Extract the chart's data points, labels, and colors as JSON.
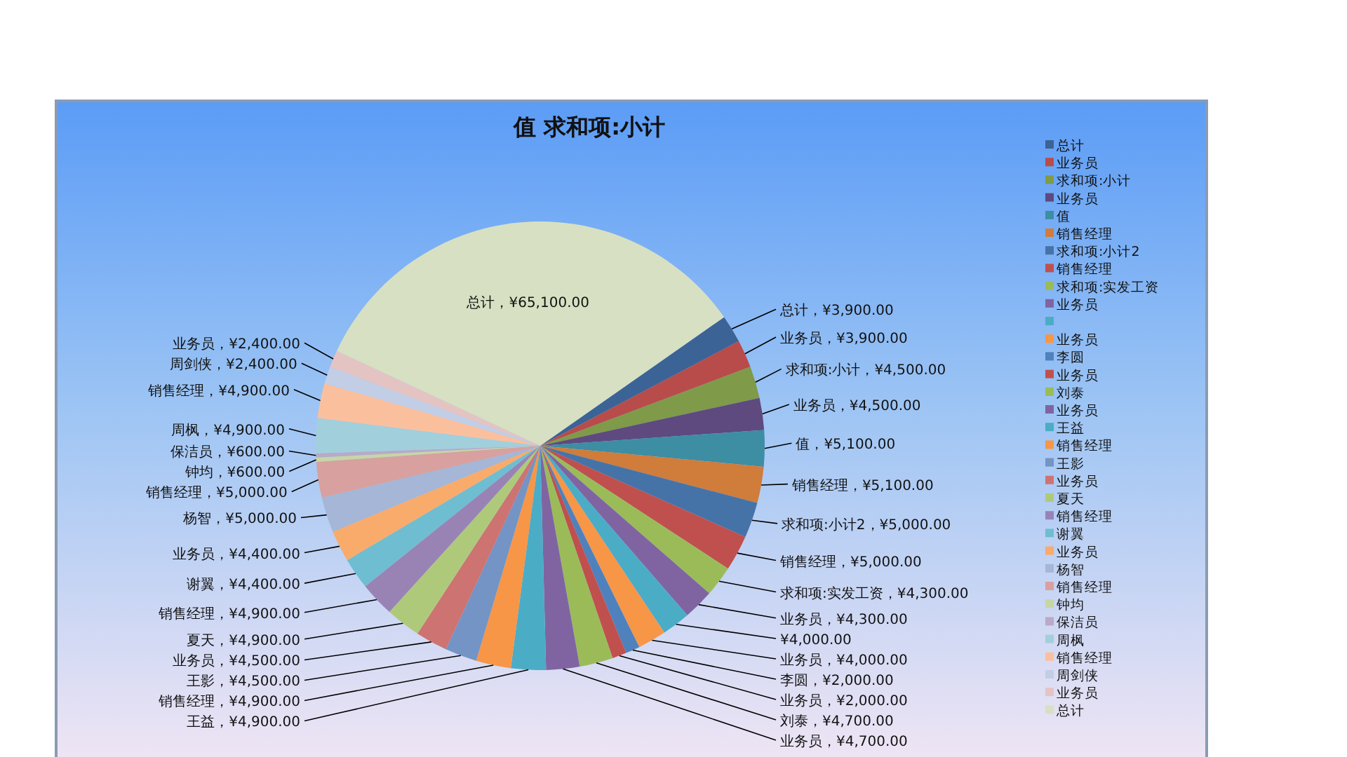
{
  "chart_data": {
    "type": "pie",
    "title": "值  求和项:小计",
    "categories": [
      "总计",
      "业务员",
      "求和项:小计",
      "业务员",
      "值",
      "销售经理",
      "求和项:小计2",
      "销售经理",
      "求和项:实发工资",
      "业务员",
      null,
      "业务员",
      "李圆",
      "业务员",
      "刘泰",
      "业务员",
      "王益",
      "销售经理",
      "王影",
      "业务员",
      "夏天",
      "销售经理",
      "谢翼",
      "业务员",
      "杨智",
      "销售经理",
      "钟均",
      "保洁员",
      "周枫",
      "销售经理",
      "周剑侠",
      "业务员",
      "总计"
    ],
    "values": [
      3900,
      3900,
      4500,
      4500,
      5100,
      5100,
      5000,
      5000,
      4300,
      4300,
      4000,
      4000,
      2000,
      2000,
      4700,
      4700,
      4900,
      4900,
      4500,
      4500,
      4900,
      4900,
      4400,
      4400,
      5000,
      5000,
      600,
      600,
      4900,
      4900,
      2400,
      2400,
      65100
    ],
    "value_labels": [
      "总计，¥3,900.00",
      "业务员，¥3,900.00",
      "求和项:小计，¥4,500.00",
      "业务员，¥4,500.00",
      "值，¥5,100.00",
      "销售经理，¥5,100.00",
      "求和项:小计2，¥5,000.00",
      "销售经理，¥5,000.00",
      "求和项:实发工资，¥4,300.00",
      "业务员，¥4,300.00",
      "¥4,000.00",
      "业务员，¥4,000.00",
      "李圆，¥2,000.00",
      "业务员，¥2,000.00",
      "刘泰，¥4,700.00",
      "业务员，¥4,700.00",
      "王益，¥4,900.00",
      "销售经理，¥4,900.00",
      "王影，¥4,500.00",
      "业务员，¥4,500.00",
      "夏天，¥4,900.00",
      "销售经理，¥4,900.00",
      "谢翼，¥4,400.00",
      "业务员，¥4,400.00",
      "杨智，¥5,000.00",
      "销售经理，¥5,000.00",
      "钟均，¥600.00",
      "保洁员，¥600.00",
      "周枫，¥4,900.00",
      "销售经理，¥4,900.00",
      "周剑侠，¥2,400.00",
      "业务员，¥2,400.00",
      "总计，¥65,100.00"
    ],
    "colors": [
      "#3c6396",
      "#b84c4a",
      "#7f9a48",
      "#5e4a7e",
      "#3d8da3",
      "#d07c3a",
      "#4573a8",
      "#c0504d",
      "#9bbb59",
      "#8064a2",
      "#4bacc6",
      "#f79646",
      "#4f81bd",
      "#c0504d",
      "#9bbb59",
      "#8064a2",
      "#4bacc6",
      "#f79646",
      "#7394c4",
      "#cd7371",
      "#afc97a",
      "#9983b5",
      "#6fbdd1",
      "#f9ab6b",
      "#a5b6d6",
      "#d8a09e",
      "#c6d6a4",
      "#b8aac8",
      "#a2cfdc",
      "#fac09e",
      "#c2cee6",
      "#e4c4c3",
      "#d7e0c2"
    ],
    "legend": "right"
  }
}
